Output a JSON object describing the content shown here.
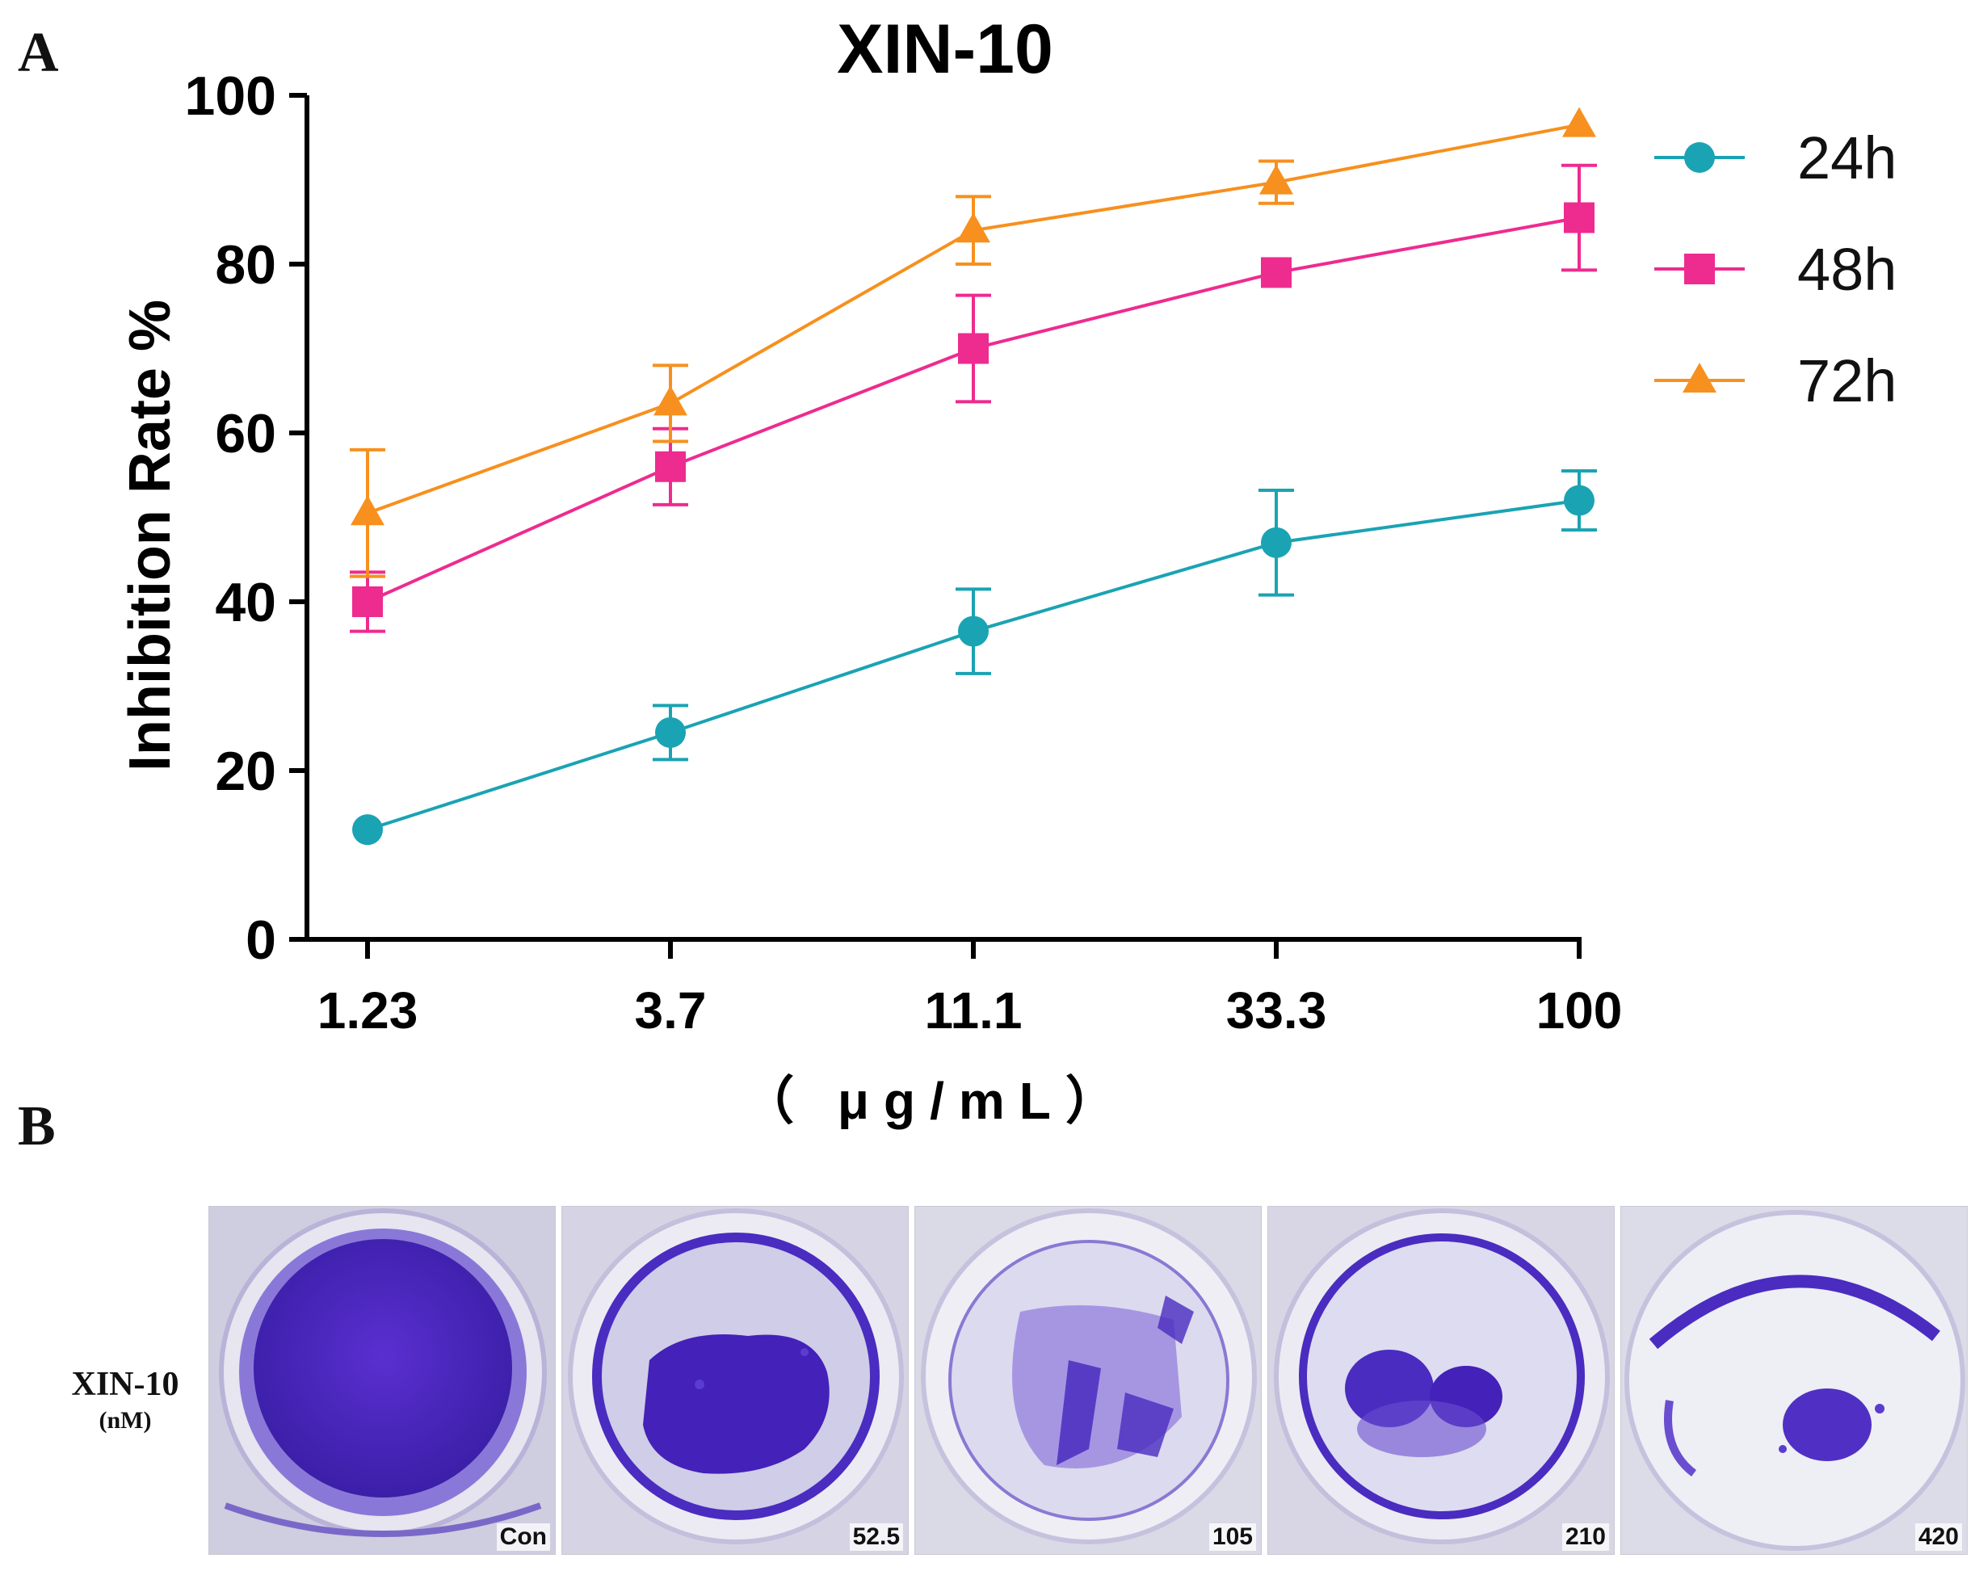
{
  "panel_a_label": "A",
  "panel_b_label": "B",
  "chart_data": {
    "type": "line",
    "title": "XIN-10",
    "xlabel": "（ μg/mL）",
    "ylabel": "Inhibition Rate %",
    "categories": [
      "1.23",
      "3.7",
      "11.1",
      "33.3",
      "100"
    ],
    "ylim": [
      0,
      100
    ],
    "yticks": [
      0,
      20,
      40,
      60,
      80,
      100
    ],
    "legend_position": "right",
    "series": [
      {
        "name": "24h",
        "color": "#1aa3b3",
        "marker": "circle",
        "values": [
          13,
          24.5,
          36.5,
          47,
          52
        ],
        "errors": [
          0,
          3.2,
          5,
          6.2,
          3.5
        ]
      },
      {
        "name": "48h",
        "color": "#ee2b8f",
        "marker": "square",
        "values": [
          40,
          56,
          70,
          79,
          85.5
        ],
        "errors": [
          3.5,
          4.5,
          6.3,
          0,
          6.2
        ]
      },
      {
        "name": "72h",
        "color": "#f7901e",
        "marker": "triangle",
        "values": [
          50.5,
          63.5,
          84,
          89.7,
          96.5
        ],
        "errors": [
          7.5,
          4.5,
          4,
          2.5,
          0
        ]
      }
    ]
  },
  "panel_b": {
    "row_label": "XIN-10",
    "row_unit": "(nM)",
    "plates": [
      {
        "label": "Con"
      },
      {
        "label": "52.5"
      },
      {
        "label": "105"
      },
      {
        "label": "210"
      },
      {
        "label": "420"
      }
    ]
  }
}
